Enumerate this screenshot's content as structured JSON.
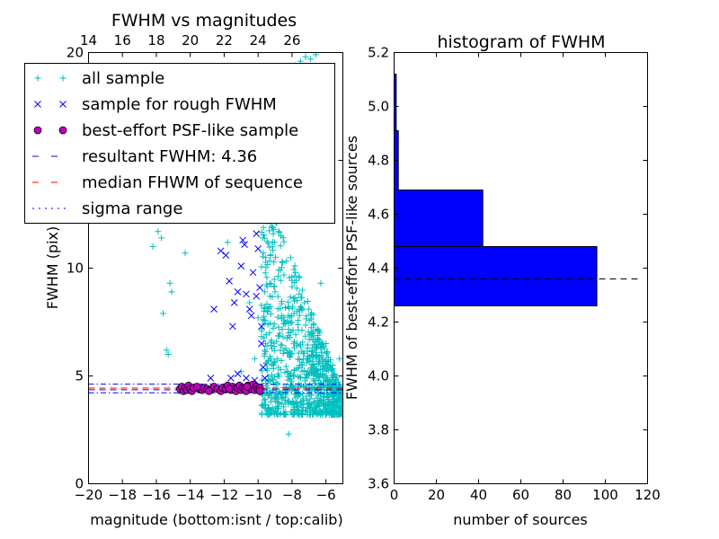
{
  "chart_data": [
    {
      "type": "scatter",
      "title": "FWHM vs magnitudes",
      "xlabel": "magnitude (bottom:isnt / top:calib)",
      "ylabel": "FWHM (pix)",
      "xlim": [
        -20,
        -5
      ],
      "ylim": [
        0,
        20
      ],
      "xticks": [
        "−20",
        "−18",
        "−16",
        "−14",
        "−12",
        "−10",
        "−8",
        "−6"
      ],
      "yticks": [
        "0",
        "5",
        "10",
        "15",
        "20"
      ],
      "top_axis": {
        "ticks": [
          "14",
          "16",
          "18",
          "20",
          "22",
          "24",
          "26"
        ],
        "offset": 34
      },
      "legend": {
        "placement": "upper-left",
        "entries": [
          {
            "label": "all sample",
            "marker": "plus",
            "color": "#00bfbf"
          },
          {
            "label": "sample for rough FWHM",
            "marker": "x",
            "color": "#0000ff"
          },
          {
            "label": "best-effort PSF-like sample",
            "marker": "circle",
            "color": "#bf00bf"
          },
          {
            "label": "resultant FWHM: 4.36",
            "marker": "dashed",
            "color": "#0000ff"
          },
          {
            "label": "median FHWM of sequence",
            "marker": "dashed",
            "color": "#ff0000"
          },
          {
            "label": "sigma range",
            "marker": "dashdot",
            "color": "#0000ff"
          }
        ]
      },
      "lines": {
        "resultant_fwhm": 4.36,
        "median_fwhm": 4.44,
        "sigma_range": [
          4.22,
          4.62
        ]
      },
      "series": [
        {
          "name": "all sample",
          "points": [
            [
              -16.2,
              11.0
            ],
            [
              -15.9,
              11.7
            ],
            [
              -15.7,
              11.4
            ],
            [
              -15.6,
              7.9
            ],
            [
              -15.4,
              6.2
            ],
            [
              -15.3,
              6.0
            ],
            [
              -15.2,
              9.3
            ],
            [
              -15.1,
              8.9
            ],
            [
              -14.3,
              10.7
            ],
            [
              -13.6,
              14.9
            ],
            [
              -12.2,
              12.4
            ],
            [
              -11.8,
              11.2
            ],
            [
              -11.0,
              5.2
            ],
            [
              -10.5,
              8.4
            ],
            [
              -10.2,
              5.8
            ],
            [
              -10.0,
              7.7
            ],
            [
              -9.7,
              15.6
            ],
            [
              -9.5,
              16.5
            ],
            [
              -9.3,
              8.7
            ],
            [
              -9.0,
              8.9
            ],
            [
              -8.8,
              14.2
            ],
            [
              -8.5,
              15.6
            ],
            [
              -8.2,
              17.9
            ],
            [
              -7.8,
              19.4
            ],
            [
              -7.5,
              19.6
            ],
            [
              -7.2,
              19.8
            ],
            [
              -6.9,
              19.7
            ],
            [
              -6.6,
              19.9
            ],
            [
              -6.3,
              9.3
            ],
            [
              -6.0,
              6.5
            ],
            [
              -5.6,
              5.5
            ],
            [
              -5.4,
              4.5
            ],
            [
              -5.2,
              5.8
            ],
            [
              -8.2,
              2.3
            ],
            [
              -7.0,
              3.6
            ]
          ],
          "cluster": {
            "x_range": [
              -9.8,
              -5.0
            ],
            "y_range": [
              3.2,
              14.5
            ],
            "count": 900
          }
        },
        {
          "name": "sample for rough FWHM",
          "points": [
            [
              -14.5,
              4.3
            ],
            [
              -13.6,
              4.4
            ],
            [
              -13.1,
              4.4
            ],
            [
              -12.8,
              4.9
            ],
            [
              -12.6,
              8.1
            ],
            [
              -12.4,
              12.4
            ],
            [
              -12.2,
              10.8
            ],
            [
              -11.9,
              10.6
            ],
            [
              -11.7,
              9.4
            ],
            [
              -11.5,
              7.3
            ],
            [
              -11.4,
              8.4
            ],
            [
              -11.2,
              8.9
            ],
            [
              -11.0,
              10.1
            ],
            [
              -10.9,
              11.3
            ],
            [
              -10.8,
              11.1
            ],
            [
              -10.7,
              8.8
            ],
            [
              -10.5,
              8.1
            ],
            [
              -10.4,
              7.8
            ],
            [
              -10.3,
              9.8
            ],
            [
              -10.1,
              8.7
            ],
            [
              -10.1,
              11.6
            ],
            [
              -10.0,
              12.6
            ],
            [
              -10.0,
              10.9
            ],
            [
              -9.9,
              9.1
            ],
            [
              -9.8,
              7.3
            ],
            [
              -9.8,
              6.5
            ],
            [
              -9.7,
              5.4
            ],
            [
              -9.6,
              4.9
            ],
            [
              -11.6,
              4.9
            ],
            [
              -11.2,
              5.1
            ],
            [
              -10.7,
              4.9
            ],
            [
              -10.2,
              4.8
            ],
            [
              -12.1,
              4.4
            ]
          ]
        },
        {
          "name": "best-effort PSF-like sample",
          "points": [
            [
              -14.6,
              4.4
            ],
            [
              -14.5,
              4.5
            ],
            [
              -14.4,
              4.3
            ],
            [
              -14.3,
              4.45
            ],
            [
              -14.2,
              4.35
            ],
            [
              -14.1,
              4.55
            ],
            [
              -14.0,
              4.4
            ],
            [
              -13.9,
              4.3
            ],
            [
              -13.8,
              4.45
            ],
            [
              -13.5,
              4.4
            ],
            [
              -13.3,
              4.35
            ],
            [
              -13.2,
              4.45
            ],
            [
              -13.0,
              4.4
            ],
            [
              -12.8,
              4.35
            ],
            [
              -12.6,
              4.5
            ],
            [
              -12.4,
              4.4
            ],
            [
              -12.2,
              4.3
            ],
            [
              -12.1,
              4.45
            ],
            [
              -11.9,
              4.4
            ],
            [
              -11.8,
              4.55
            ],
            [
              -11.6,
              4.35
            ],
            [
              -11.5,
              4.5
            ],
            [
              -11.4,
              4.4
            ],
            [
              -11.3,
              4.3
            ],
            [
              -11.2,
              4.45
            ],
            [
              -11.1,
              4.55
            ],
            [
              -11.0,
              4.35
            ],
            [
              -10.9,
              4.45
            ],
            [
              -10.8,
              4.4
            ],
            [
              -10.7,
              4.3
            ],
            [
              -10.6,
              4.55
            ],
            [
              -10.5,
              4.45
            ],
            [
              -10.4,
              4.4
            ],
            [
              -10.3,
              4.6
            ],
            [
              -10.2,
              4.35
            ],
            [
              -10.1,
              4.5
            ],
            [
              -10.0,
              4.4
            ],
            [
              -9.9,
              4.45
            ],
            [
              -9.9,
              4.3
            ],
            [
              -13.6,
              4.5
            ],
            [
              -12.9,
              4.3
            ],
            [
              -11.7,
              4.4
            ],
            [
              -10.65,
              4.5
            ]
          ]
        }
      ]
    },
    {
      "type": "bar",
      "orientation": "horizontal",
      "title": "histogram of FWHM",
      "xlabel": "number of sources",
      "ylabel": "FWHM of best-effort PSF-like sources",
      "xlim": [
        0,
        120
      ],
      "ylim": [
        3.6,
        5.2
      ],
      "xticks": [
        "0",
        "20",
        "40",
        "60",
        "80",
        "100",
        "120"
      ],
      "yticks": [
        "3.6",
        "3.8",
        "4.0",
        "4.2",
        "4.4",
        "4.6",
        "4.8",
        "5.0",
        "5.2"
      ],
      "bar_color": "#0000ff",
      "bins": [
        {
          "y0": 4.26,
          "y1": 4.48,
          "count": 96
        },
        {
          "y0": 4.48,
          "y1": 4.69,
          "count": 42
        },
        {
          "y0": 4.69,
          "y1": 4.91,
          "count": 2
        },
        {
          "y0": 4.91,
          "y1": 5.12,
          "count": 1
        }
      ],
      "median_line": 4.36
    }
  ]
}
